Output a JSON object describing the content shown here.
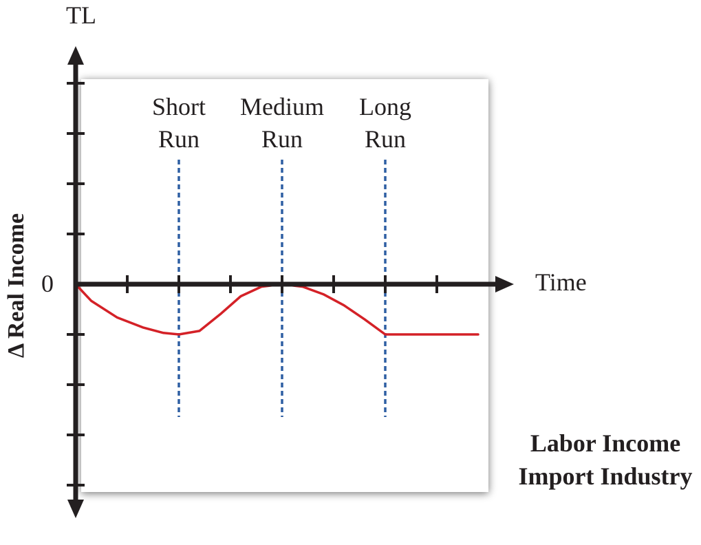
{
  "chart_data": {
    "type": "line",
    "y_axis_top_label": "TL",
    "ylabel": "Δ Real Income",
    "xlabel": "Time",
    "y_origin_label": "0",
    "grid": false,
    "ylim": [
      -4,
      4
    ],
    "xlim": [
      0,
      8
    ],
    "x_ticks": [
      1,
      2,
      3,
      4,
      5,
      6,
      7
    ],
    "y_ticks": [
      -4,
      -3,
      -2,
      -1,
      1,
      2,
      3,
      4
    ],
    "series": [
      {
        "color": "#d42127",
        "x": [
          0,
          0.3,
          0.8,
          1.3,
          1.7,
          2,
          2.4,
          2.8,
          3.2,
          3.6,
          4,
          4.4,
          4.8,
          5.2,
          5.6,
          6,
          6.5,
          7,
          7.5,
          7.8
        ],
        "y": [
          0,
          -0.33,
          -0.66,
          -0.86,
          -0.97,
          -1,
          -0.93,
          -0.6,
          -0.24,
          -0.05,
          0,
          -0.05,
          -0.2,
          -0.42,
          -0.7,
          -1,
          -1,
          -1,
          -1,
          -1
        ]
      }
    ],
    "periods": [
      {
        "label_line1": "Short",
        "label_line2": "Run",
        "x": 2
      },
      {
        "label_line1": "Medium",
        "label_line2": "Run",
        "x": 4
      },
      {
        "label_line1": "Long",
        "label_line2": "Run",
        "x": 6
      }
    ],
    "annotation": {
      "line1": "Labor Income",
      "line2": "Import Industry"
    },
    "colors": {
      "axis": "#231f20",
      "curve": "#d42127",
      "period_line": "#2e5fa3",
      "panel": "#ffffff",
      "shadow": "#9a9a9a"
    }
  }
}
